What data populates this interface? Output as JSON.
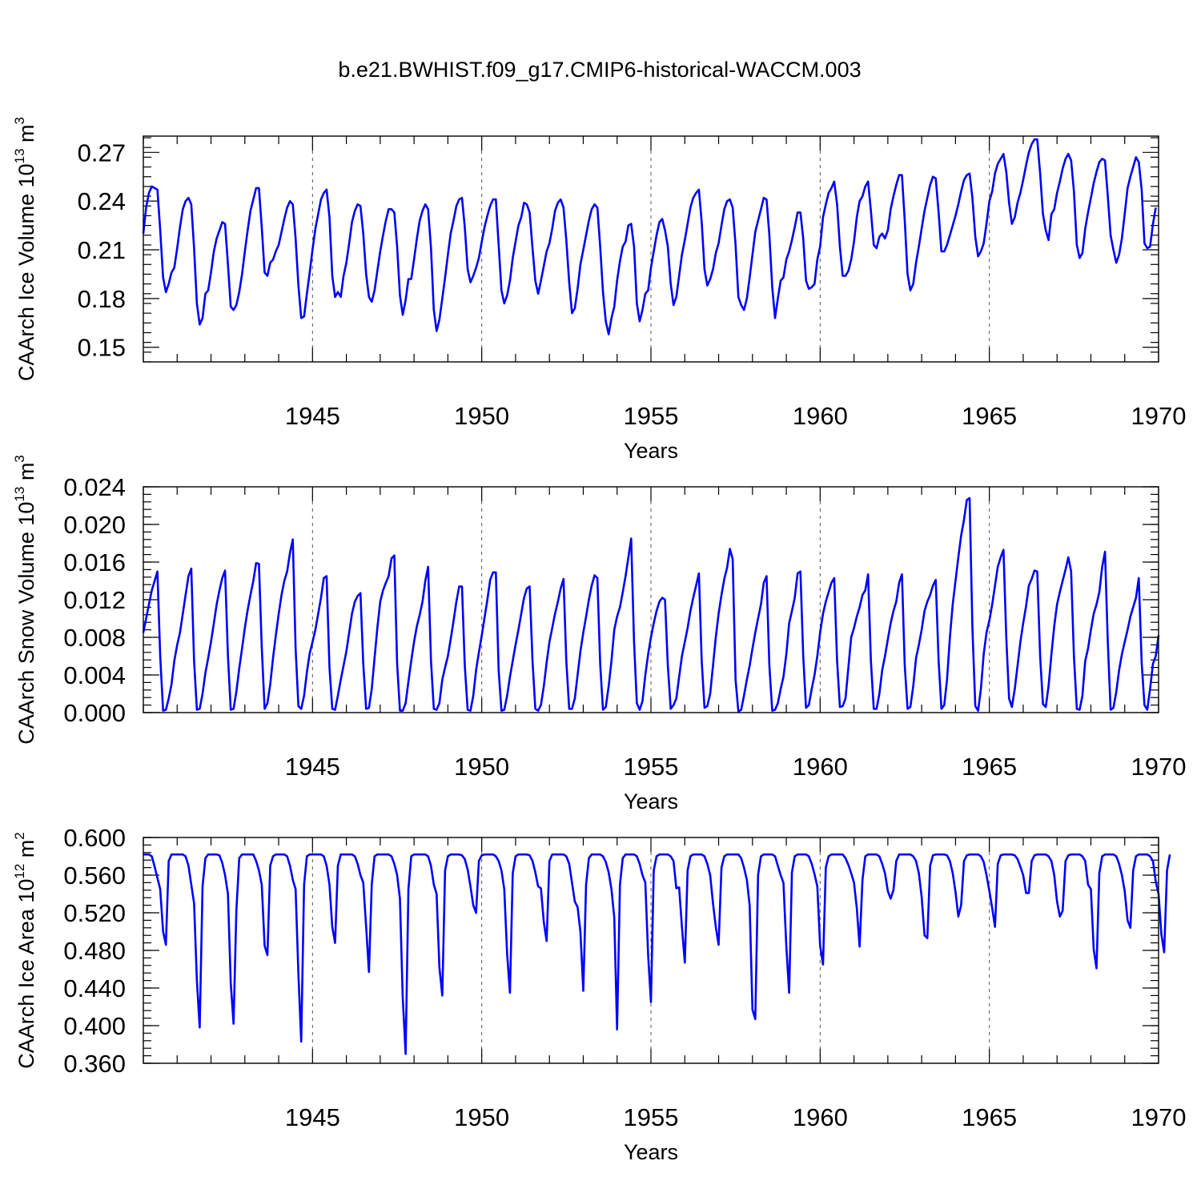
{
  "title": "b.e21.BWHIST.f09_g17.CMIP6-historical-WACCM.003",
  "chart_data": [
    {
      "type": "line",
      "name": "ice-volume",
      "ylabel": "CAArch Ice Volume 10",
      "ylabel_exp": "13",
      "ylabel_unit": " m",
      "ylabel_unit_exp": "3",
      "xlabel": "Years",
      "xlim": [
        1940.0,
        1970.0
      ],
      "ylim": [
        0.141,
        0.28
      ],
      "xticks": [
        1945,
        1950,
        1955,
        1960,
        1965,
        1970
      ],
      "xtick_labels": [
        "1945",
        "1950",
        "1955",
        "1960",
        "1965",
        "1970"
      ],
      "yticks": [
        0.15,
        0.18,
        0.21,
        0.24,
        0.27
      ],
      "ytick_labels": [
        "0.15",
        "0.18",
        "0.21",
        "0.24",
        "0.27"
      ],
      "grid": "dashed vertical at major x ticks",
      "start_year": 1940.0,
      "step": 0.0833333,
      "values": [
        0.22,
        0.236,
        0.245,
        0.249,
        0.248,
        0.247,
        0.222,
        0.193,
        0.184,
        0.189,
        0.196,
        0.199,
        0.211,
        0.224,
        0.235,
        0.24,
        0.242,
        0.238,
        0.211,
        0.177,
        0.164,
        0.168,
        0.183,
        0.185,
        0.196,
        0.209,
        0.217,
        0.222,
        0.227,
        0.226,
        0.201,
        0.175,
        0.173,
        0.176,
        0.184,
        0.195,
        0.209,
        0.222,
        0.234,
        0.241,
        0.248,
        0.248,
        0.224,
        0.196,
        0.194,
        0.202,
        0.204,
        0.209,
        0.213,
        0.221,
        0.229,
        0.236,
        0.24,
        0.238,
        0.217,
        0.188,
        0.168,
        0.169,
        0.183,
        0.196,
        0.21,
        0.223,
        0.232,
        0.241,
        0.245,
        0.247,
        0.23,
        0.194,
        0.181,
        0.184,
        0.181,
        0.194,
        0.202,
        0.214,
        0.227,
        0.234,
        0.238,
        0.237,
        0.22,
        0.195,
        0.181,
        0.178,
        0.185,
        0.197,
        0.209,
        0.219,
        0.228,
        0.235,
        0.235,
        0.233,
        0.212,
        0.182,
        0.17,
        0.179,
        0.192,
        0.192,
        0.204,
        0.217,
        0.228,
        0.234,
        0.238,
        0.235,
        0.211,
        0.173,
        0.16,
        0.167,
        0.18,
        0.193,
        0.207,
        0.22,
        0.228,
        0.237,
        0.241,
        0.242,
        0.224,
        0.198,
        0.19,
        0.194,
        0.199,
        0.205,
        0.215,
        0.224,
        0.231,
        0.237,
        0.241,
        0.241,
        0.213,
        0.185,
        0.177,
        0.182,
        0.191,
        0.205,
        0.215,
        0.225,
        0.23,
        0.239,
        0.238,
        0.233,
        0.211,
        0.191,
        0.183,
        0.191,
        0.2,
        0.209,
        0.214,
        0.223,
        0.234,
        0.239,
        0.241,
        0.236,
        0.216,
        0.19,
        0.171,
        0.174,
        0.186,
        0.201,
        0.21,
        0.219,
        0.228,
        0.235,
        0.238,
        0.236,
        0.212,
        0.184,
        0.166,
        0.158,
        0.168,
        0.175,
        0.191,
        0.203,
        0.212,
        0.215,
        0.225,
        0.226,
        0.212,
        0.177,
        0.166,
        0.173,
        0.183,
        0.185,
        0.199,
        0.209,
        0.219,
        0.227,
        0.229,
        0.222,
        0.212,
        0.189,
        0.176,
        0.181,
        0.194,
        0.207,
        0.216,
        0.226,
        0.236,
        0.242,
        0.245,
        0.247,
        0.227,
        0.198,
        0.188,
        0.192,
        0.198,
        0.208,
        0.214,
        0.225,
        0.235,
        0.24,
        0.241,
        0.236,
        0.213,
        0.181,
        0.176,
        0.173,
        0.18,
        0.193,
        0.207,
        0.221,
        0.228,
        0.235,
        0.242,
        0.241,
        0.219,
        0.187,
        0.168,
        0.18,
        0.191,
        0.193,
        0.204,
        0.209,
        0.216,
        0.224,
        0.233,
        0.233,
        0.217,
        0.191,
        0.186,
        0.187,
        0.189,
        0.204,
        0.212,
        0.23,
        0.238,
        0.245,
        0.248,
        0.252,
        0.238,
        0.212,
        0.194,
        0.194,
        0.197,
        0.204,
        0.215,
        0.23,
        0.24,
        0.243,
        0.249,
        0.252,
        0.234,
        0.213,
        0.211,
        0.218,
        0.22,
        0.217,
        0.222,
        0.235,
        0.243,
        0.25,
        0.256,
        0.256,
        0.228,
        0.195,
        0.185,
        0.189,
        0.202,
        0.212,
        0.223,
        0.234,
        0.242,
        0.25,
        0.255,
        0.254,
        0.233,
        0.209,
        0.209,
        0.213,
        0.219,
        0.225,
        0.231,
        0.238,
        0.246,
        0.253,
        0.256,
        0.257,
        0.242,
        0.218,
        0.206,
        0.209,
        0.214,
        0.226,
        0.24,
        0.246,
        0.257,
        0.263,
        0.266,
        0.269,
        0.258,
        0.239,
        0.226,
        0.23,
        0.239,
        0.245,
        0.253,
        0.262,
        0.27,
        0.275,
        0.278,
        0.278,
        0.257,
        0.232,
        0.222,
        0.216,
        0.232,
        0.235,
        0.245,
        0.252,
        0.26,
        0.266,
        0.269,
        0.265,
        0.246,
        0.213,
        0.205,
        0.208,
        0.223,
        0.233,
        0.242,
        0.251,
        0.258,
        0.264,
        0.266,
        0.265,
        0.243,
        0.219,
        0.21,
        0.202,
        0.207,
        0.217,
        0.232,
        0.248,
        0.255,
        0.261,
        0.267,
        0.264,
        0.247,
        0.214,
        0.211,
        0.212,
        0.226,
        0.236
      ]
    },
    {
      "type": "line",
      "name": "snow-volume",
      "ylabel": "CAArch Snow Volume 10",
      "ylabel_exp": "13",
      "ylabel_unit": " m",
      "ylabel_unit_exp": "3",
      "xlabel": "Years",
      "xlim": [
        1940.0,
        1970.0
      ],
      "ylim": [
        0.0,
        0.024
      ],
      "xticks": [
        1945,
        1950,
        1955,
        1960,
        1965,
        1970
      ],
      "xtick_labels": [
        "1945",
        "1950",
        "1955",
        "1960",
        "1965",
        "1970"
      ],
      "yticks": [
        0.0,
        0.004,
        0.008,
        0.012,
        0.016,
        0.02,
        0.024
      ],
      "ytick_labels": [
        "0.000",
        "0.004",
        "0.008",
        "0.012",
        "0.016",
        "0.020",
        "0.024"
      ],
      "grid": "dashed vertical at major x ticks",
      "start_year": 1940.0,
      "step": 0.0833333,
      "values": [
        0.0085,
        0.01,
        0.0115,
        0.013,
        0.014,
        0.015,
        0.006,
        0.0002,
        0.0003,
        0.0015,
        0.003,
        0.0055,
        0.0072,
        0.0085,
        0.0105,
        0.0125,
        0.0145,
        0.0153,
        0.0055,
        0.0003,
        0.0004,
        0.002,
        0.0042,
        0.0058,
        0.0075,
        0.0095,
        0.0115,
        0.013,
        0.0143,
        0.0151,
        0.006,
        0.0003,
        0.0004,
        0.0022,
        0.0047,
        0.0068,
        0.009,
        0.0109,
        0.0125,
        0.014,
        0.0159,
        0.0158,
        0.007,
        0.0004,
        0.001,
        0.003,
        0.0058,
        0.0082,
        0.0105,
        0.0125,
        0.014,
        0.015,
        0.017,
        0.0184,
        0.0068,
        0.0007,
        0.0004,
        0.0018,
        0.0043,
        0.0063,
        0.0075,
        0.0088,
        0.0105,
        0.0122,
        0.0143,
        0.0145,
        0.0048,
        0.0004,
        0.0003,
        0.0018,
        0.0035,
        0.005,
        0.0065,
        0.0085,
        0.0105,
        0.0118,
        0.0124,
        0.0127,
        0.0052,
        0.0004,
        0.0005,
        0.0025,
        0.0058,
        0.009,
        0.0118,
        0.013,
        0.0138,
        0.0145,
        0.0164,
        0.0167,
        0.0052,
        0.0002,
        0.0002,
        0.001,
        0.0033,
        0.0055,
        0.0075,
        0.0092,
        0.0104,
        0.0118,
        0.014,
        0.0155,
        0.0055,
        0.0004,
        0.0003,
        0.001,
        0.0035,
        0.0048,
        0.006,
        0.0078,
        0.0097,
        0.0118,
        0.0134,
        0.0134,
        0.005,
        0.0003,
        0.0002,
        0.0018,
        0.0045,
        0.0064,
        0.0082,
        0.0101,
        0.012,
        0.0141,
        0.0149,
        0.0149,
        0.0045,
        0.0002,
        0.0003,
        0.0018,
        0.0038,
        0.0055,
        0.0072,
        0.0088,
        0.0105,
        0.0122,
        0.0132,
        0.0134,
        0.0055,
        0.0004,
        0.0002,
        0.0008,
        0.0028,
        0.0053,
        0.0075,
        0.009,
        0.0105,
        0.0118,
        0.0132,
        0.0142,
        0.0055,
        0.0004,
        0.0004,
        0.0015,
        0.004,
        0.0065,
        0.0085,
        0.0102,
        0.012,
        0.0135,
        0.0146,
        0.0143,
        0.0052,
        0.0003,
        0.0006,
        0.0028,
        0.0055,
        0.0088,
        0.0102,
        0.0112,
        0.0128,
        0.0145,
        0.0165,
        0.0185,
        0.0075,
        0.001,
        0.0003,
        0.0012,
        0.004,
        0.0062,
        0.008,
        0.0095,
        0.0108,
        0.0118,
        0.0122,
        0.012,
        0.005,
        0.0004,
        0.0008,
        0.0015,
        0.0038,
        0.006,
        0.0075,
        0.009,
        0.0108,
        0.0122,
        0.0135,
        0.0148,
        0.0055,
        0.0005,
        0.0007,
        0.002,
        0.005,
        0.008,
        0.0105,
        0.0125,
        0.0142,
        0.0154,
        0.0174,
        0.0163,
        0.0035,
        0.0001,
        0.0003,
        0.0018,
        0.0035,
        0.005,
        0.0068,
        0.0085,
        0.01,
        0.0115,
        0.0138,
        0.0145,
        0.005,
        0.0002,
        0.0003,
        0.001,
        0.0025,
        0.0038,
        0.0062,
        0.0095,
        0.0108,
        0.0122,
        0.0148,
        0.015,
        0.006,
        0.0005,
        0.0008,
        0.0025,
        0.004,
        0.006,
        0.0085,
        0.0105,
        0.0118,
        0.0128,
        0.0138,
        0.0143,
        0.0055,
        0.0006,
        0.0007,
        0.0015,
        0.0048,
        0.008,
        0.009,
        0.0102,
        0.0112,
        0.0125,
        0.013,
        0.0147,
        0.0055,
        0.0004,
        0.0004,
        0.002,
        0.0045,
        0.006,
        0.0078,
        0.0095,
        0.0108,
        0.0118,
        0.0138,
        0.0147,
        0.005,
        0.0004,
        0.0006,
        0.0028,
        0.0058,
        0.0072,
        0.0088,
        0.0108,
        0.0118,
        0.0125,
        0.0135,
        0.0141,
        0.0055,
        0.0004,
        0.0008,
        0.0035,
        0.008,
        0.0115,
        0.014,
        0.0165,
        0.0188,
        0.0205,
        0.0226,
        0.0228,
        0.009,
        0.0007,
        0.0002,
        0.0025,
        0.0062,
        0.0085,
        0.0098,
        0.0115,
        0.0135,
        0.0155,
        0.0165,
        0.0173,
        0.008,
        0.0015,
        0.0006,
        0.0025,
        0.005,
        0.0075,
        0.0095,
        0.0113,
        0.0135,
        0.0142,
        0.0151,
        0.015,
        0.006,
        0.0009,
        0.0006,
        0.0028,
        0.0062,
        0.0092,
        0.0115,
        0.0128,
        0.014,
        0.0152,
        0.0165,
        0.015,
        0.006,
        0.0004,
        0.0003,
        0.0018,
        0.0055,
        0.0068,
        0.0088,
        0.0105,
        0.0115,
        0.0128,
        0.0155,
        0.0171,
        0.0075,
        0.0003,
        0.0005,
        0.0022,
        0.0045,
        0.0062,
        0.0075,
        0.0088,
        0.0102,
        0.0112,
        0.0122,
        0.0143,
        0.0053,
        0.0008,
        0.0003,
        0.0025,
        0.0052,
        0.006,
        0.0082
      ]
    },
    {
      "type": "line",
      "name": "ice-area",
      "ylabel": "CAArch Ice Area 10",
      "ylabel_exp": "12",
      "ylabel_unit": " m",
      "ylabel_unit_exp": "2",
      "xlabel": "Years",
      "xlim": [
        1940.0,
        1970.0
      ],
      "ylim": [
        0.36,
        0.6
      ],
      "xticks": [
        1945,
        1950,
        1955,
        1960,
        1965,
        1970
      ],
      "xtick_labels": [
        "1945",
        "1950",
        "1955",
        "1960",
        "1965",
        "1970"
      ],
      "yticks": [
        0.36,
        0.4,
        0.44,
        0.48,
        0.52,
        0.56,
        0.6
      ],
      "ytick_labels": [
        "0.360",
        "0.400",
        "0.440",
        "0.480",
        "0.520",
        "0.560",
        "0.600"
      ],
      "grid": "dashed vertical at major x ticks",
      "start_year": 1940.0,
      "step": 0.0833333,
      "values": [
        0.582,
        0.582,
        0.582,
        0.58,
        0.569,
        0.557,
        0.545,
        0.5,
        0.486,
        0.575,
        0.582,
        0.582,
        0.582,
        0.582,
        0.582,
        0.58,
        0.57,
        0.55,
        0.53,
        0.448,
        0.398,
        0.548,
        0.578,
        0.582,
        0.582,
        0.582,
        0.582,
        0.581,
        0.573,
        0.56,
        0.54,
        0.445,
        0.402,
        0.522,
        0.578,
        0.582,
        0.582,
        0.582,
        0.582,
        0.582,
        0.575,
        0.565,
        0.55,
        0.485,
        0.475,
        0.57,
        0.58,
        0.582,
        0.582,
        0.582,
        0.582,
        0.58,
        0.57,
        0.555,
        0.545,
        0.455,
        0.383,
        0.55,
        0.58,
        0.582,
        0.582,
        0.582,
        0.582,
        0.582,
        0.58,
        0.57,
        0.55,
        0.505,
        0.488,
        0.57,
        0.582,
        0.582,
        0.582,
        0.582,
        0.582,
        0.58,
        0.572,
        0.56,
        0.552,
        0.505,
        0.457,
        0.55,
        0.58,
        0.582,
        0.582,
        0.582,
        0.582,
        0.582,
        0.58,
        0.572,
        0.56,
        0.535,
        0.43,
        0.37,
        0.545,
        0.58,
        0.582,
        0.582,
        0.582,
        0.582,
        0.582,
        0.58,
        0.57,
        0.55,
        0.54,
        0.462,
        0.432,
        0.565,
        0.58,
        0.582,
        0.582,
        0.582,
        0.582,
        0.581,
        0.577,
        0.566,
        0.548,
        0.528,
        0.52,
        0.575,
        0.581,
        0.582,
        0.582,
        0.582,
        0.582,
        0.58,
        0.575,
        0.565,
        0.545,
        0.476,
        0.435,
        0.562,
        0.58,
        0.582,
        0.582,
        0.582,
        0.582,
        0.581,
        0.575,
        0.563,
        0.548,
        0.546,
        0.51,
        0.49,
        0.575,
        0.582,
        0.582,
        0.582,
        0.582,
        0.582,
        0.58,
        0.572,
        0.552,
        0.532,
        0.526,
        0.5,
        0.437,
        0.55,
        0.578,
        0.582,
        0.582,
        0.582,
        0.582,
        0.58,
        0.574,
        0.563,
        0.545,
        0.515,
        0.396,
        0.55,
        0.578,
        0.582,
        0.582,
        0.582,
        0.582,
        0.58,
        0.572,
        0.56,
        0.552,
        0.475,
        0.425,
        0.565,
        0.58,
        0.582,
        0.582,
        0.582,
        0.582,
        0.58,
        0.575,
        0.546,
        0.547,
        0.505,
        0.467,
        0.565,
        0.58,
        0.582,
        0.582,
        0.582,
        0.582,
        0.58,
        0.572,
        0.56,
        0.53,
        0.505,
        0.486,
        0.568,
        0.58,
        0.582,
        0.582,
        0.582,
        0.582,
        0.582,
        0.578,
        0.568,
        0.555,
        0.528,
        0.417,
        0.407,
        0.56,
        0.58,
        0.582,
        0.582,
        0.582,
        0.582,
        0.58,
        0.57,
        0.56,
        0.552,
        0.484,
        0.435,
        0.563,
        0.58,
        0.582,
        0.582,
        0.582,
        0.582,
        0.58,
        0.572,
        0.561,
        0.548,
        0.485,
        0.465,
        0.568,
        0.58,
        0.582,
        0.582,
        0.582,
        0.582,
        0.582,
        0.578,
        0.571,
        0.562,
        0.552,
        0.525,
        0.484,
        0.555,
        0.58,
        0.582,
        0.582,
        0.582,
        0.582,
        0.58,
        0.572,
        0.562,
        0.543,
        0.535,
        0.544,
        0.575,
        0.582,
        0.582,
        0.582,
        0.582,
        0.582,
        0.58,
        0.575,
        0.562,
        0.537,
        0.496,
        0.493,
        0.57,
        0.581,
        0.582,
        0.582,
        0.582,
        0.582,
        0.581,
        0.575,
        0.562,
        0.542,
        0.516,
        0.528,
        0.575,
        0.581,
        0.582,
        0.582,
        0.582,
        0.582,
        0.58,
        0.574,
        0.56,
        0.543,
        0.525,
        0.505,
        0.572,
        0.581,
        0.582,
        0.582,
        0.582,
        0.582,
        0.581,
        0.577,
        0.569,
        0.56,
        0.541,
        0.541,
        0.575,
        0.581,
        0.582,
        0.582,
        0.582,
        0.582,
        0.58,
        0.575,
        0.56,
        0.532,
        0.516,
        0.522,
        0.575,
        0.581,
        0.582,
        0.582,
        0.582,
        0.582,
        0.58,
        0.575,
        0.55,
        0.545,
        0.481,
        0.461,
        0.562,
        0.58,
        0.582,
        0.582,
        0.582,
        0.582,
        0.58,
        0.572,
        0.56,
        0.543,
        0.512,
        0.504,
        0.565,
        0.58,
        0.582,
        0.582,
        0.582,
        0.582,
        0.58,
        0.575,
        0.553,
        0.54,
        0.497,
        0.478,
        0.565,
        0.582
      ]
    }
  ]
}
